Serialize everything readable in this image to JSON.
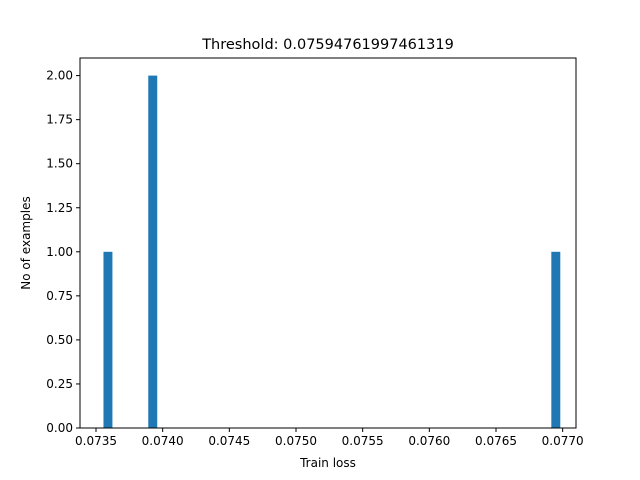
{
  "chart_data": {
    "type": "bar",
    "title": "Threshold: 0.07594761997461319",
    "xlabel": "Train loss",
    "ylabel": "No of examples",
    "xlim": [
      0.07338,
      0.0771
    ],
    "ylim": [
      0,
      2.0
    ],
    "xticks": [
      0.0735,
      0.074,
      0.0745,
      0.075,
      0.0755,
      0.076,
      0.0765,
      0.077
    ],
    "xtick_labels": [
      "0.0735",
      "0.0740",
      "0.0745",
      "0.0750",
      "0.0755",
      "0.0760",
      "0.0765",
      "0.0770"
    ],
    "yticks": [
      0.0,
      0.25,
      0.5,
      0.75,
      1.0,
      1.25,
      1.5,
      1.75,
      2.0
    ],
    "ytick_labels": [
      "0.00",
      "0.25",
      "0.50",
      "0.75",
      "1.00",
      "1.25",
      "1.50",
      "1.75",
      "2.00"
    ],
    "bar_width": 6.72e-05,
    "bars": [
      {
        "x_start": 0.073556,
        "count": 1
      },
      {
        "x_start": 0.073892,
        "count": 2
      },
      {
        "x_start": 0.076915,
        "count": 1
      }
    ],
    "grid": false,
    "bar_color": "#1f77b4"
  }
}
